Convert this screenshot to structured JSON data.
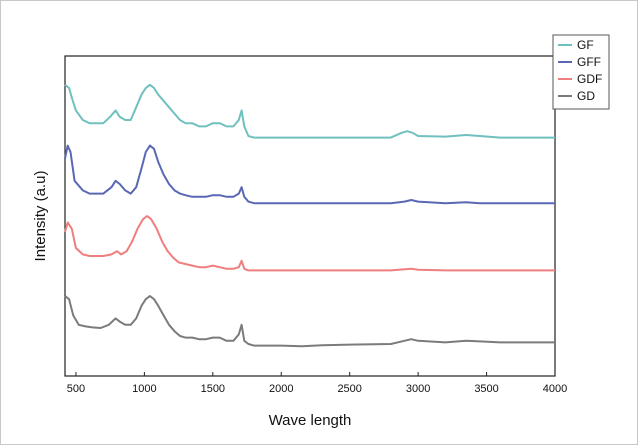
{
  "chart_data": {
    "type": "line",
    "title": "",
    "xlabel": "Wave length",
    "ylabel": "Intensity (a.u)",
    "xlim": [
      420,
      4000
    ],
    "ylim": [
      0,
      100
    ],
    "xticks": [
      "500",
      "1000",
      "1500",
      "2000",
      "2500",
      "3000",
      "3500",
      "4000"
    ],
    "y_tick_labels_shown": false,
    "grid": false,
    "legend_position": "top-right",
    "note": "",
    "series": [
      {
        "name": "GF",
        "color": "#6fc0be",
        "points": [
          [
            420,
            91
          ],
          [
            450,
            90
          ],
          [
            470,
            87
          ],
          [
            500,
            83
          ],
          [
            550,
            80
          ],
          [
            600,
            79
          ],
          [
            650,
            79
          ],
          [
            700,
            79
          ],
          [
            750,
            81
          ],
          [
            790,
            83
          ],
          [
            820,
            81
          ],
          [
            860,
            80
          ],
          [
            900,
            80
          ],
          [
            940,
            84
          ],
          [
            980,
            88
          ],
          [
            1010,
            90
          ],
          [
            1040,
            91
          ],
          [
            1070,
            90
          ],
          [
            1100,
            88
          ],
          [
            1140,
            86
          ],
          [
            1180,
            84
          ],
          [
            1220,
            82
          ],
          [
            1260,
            80
          ],
          [
            1300,
            79
          ],
          [
            1350,
            79
          ],
          [
            1400,
            78
          ],
          [
            1450,
            78
          ],
          [
            1500,
            79
          ],
          [
            1550,
            79
          ],
          [
            1600,
            78
          ],
          [
            1650,
            78
          ],
          [
            1690,
            80
          ],
          [
            1710,
            83
          ],
          [
            1730,
            78
          ],
          [
            1760,
            75
          ],
          [
            1800,
            74.5
          ],
          [
            2000,
            74.5
          ],
          [
            2500,
            74.5
          ],
          [
            2800,
            74.5
          ],
          [
            2880,
            76
          ],
          [
            2920,
            76.5
          ],
          [
            2960,
            76
          ],
          [
            3000,
            75
          ],
          [
            3200,
            74.8
          ],
          [
            3350,
            75.3
          ],
          [
            3450,
            75
          ],
          [
            3600,
            74.5
          ],
          [
            4000,
            74.5
          ]
        ]
      },
      {
        "name": "GFF",
        "color": "#5a67b5",
        "points": [
          [
            420,
            68
          ],
          [
            440,
            72
          ],
          [
            460,
            70
          ],
          [
            490,
            61
          ],
          [
            550,
            58
          ],
          [
            600,
            57
          ],
          [
            650,
            57
          ],
          [
            700,
            57
          ],
          [
            760,
            59
          ],
          [
            790,
            61
          ],
          [
            820,
            60
          ],
          [
            860,
            58
          ],
          [
            900,
            57
          ],
          [
            940,
            59
          ],
          [
            980,
            65
          ],
          [
            1010,
            70
          ],
          [
            1040,
            72
          ],
          [
            1070,
            71
          ],
          [
            1100,
            67
          ],
          [
            1140,
            63
          ],
          [
            1180,
            60
          ],
          [
            1220,
            58
          ],
          [
            1260,
            57
          ],
          [
            1300,
            56.5
          ],
          [
            1350,
            56
          ],
          [
            1400,
            56
          ],
          [
            1450,
            56
          ],
          [
            1500,
            56.5
          ],
          [
            1550,
            56.5
          ],
          [
            1600,
            56
          ],
          [
            1650,
            56
          ],
          [
            1690,
            57
          ],
          [
            1710,
            59
          ],
          [
            1730,
            56
          ],
          [
            1760,
            54.5
          ],
          [
            1800,
            54
          ],
          [
            2000,
            54
          ],
          [
            2500,
            54
          ],
          [
            2800,
            54
          ],
          [
            2900,
            54.5
          ],
          [
            2950,
            55
          ],
          [
            3000,
            54.5
          ],
          [
            3200,
            54
          ],
          [
            3350,
            54.3
          ],
          [
            3450,
            54
          ],
          [
            4000,
            54
          ]
        ]
      },
      {
        "name": "GDF",
        "color": "#ef7f7f",
        "points": [
          [
            420,
            45
          ],
          [
            440,
            48
          ],
          [
            470,
            46
          ],
          [
            500,
            40
          ],
          [
            550,
            38
          ],
          [
            600,
            37.5
          ],
          [
            650,
            37.5
          ],
          [
            700,
            37.5
          ],
          [
            760,
            38
          ],
          [
            800,
            39
          ],
          [
            830,
            38
          ],
          [
            870,
            39
          ],
          [
            910,
            42
          ],
          [
            950,
            46
          ],
          [
            990,
            49
          ],
          [
            1020,
            50
          ],
          [
            1050,
            49
          ],
          [
            1090,
            46
          ],
          [
            1130,
            42
          ],
          [
            1170,
            39
          ],
          [
            1210,
            37
          ],
          [
            1250,
            35.5
          ],
          [
            1300,
            35
          ],
          [
            1350,
            34.5
          ],
          [
            1400,
            34
          ],
          [
            1450,
            34
          ],
          [
            1500,
            34.5
          ],
          [
            1550,
            34
          ],
          [
            1600,
            33.5
          ],
          [
            1650,
            33.5
          ],
          [
            1690,
            34
          ],
          [
            1710,
            36
          ],
          [
            1730,
            33.5
          ],
          [
            1760,
            33
          ],
          [
            1800,
            33
          ],
          [
            2000,
            33
          ],
          [
            2500,
            33
          ],
          [
            2800,
            33
          ],
          [
            2950,
            33.5
          ],
          [
            3000,
            33.2
          ],
          [
            3200,
            33
          ],
          [
            4000,
            33
          ]
        ]
      },
      {
        "name": "GD",
        "color": "#7b7b7b",
        "points": [
          [
            420,
            25
          ],
          [
            450,
            24
          ],
          [
            480,
            19
          ],
          [
            520,
            16
          ],
          [
            570,
            15.5
          ],
          [
            620,
            15.2
          ],
          [
            680,
            15
          ],
          [
            740,
            16
          ],
          [
            790,
            18
          ],
          [
            820,
            17
          ],
          [
            860,
            16
          ],
          [
            900,
            16
          ],
          [
            940,
            18
          ],
          [
            980,
            22
          ],
          [
            1010,
            24
          ],
          [
            1040,
            25
          ],
          [
            1070,
            24
          ],
          [
            1100,
            22
          ],
          [
            1140,
            19
          ],
          [
            1180,
            16
          ],
          [
            1220,
            14
          ],
          [
            1260,
            12.5
          ],
          [
            1300,
            12
          ],
          [
            1350,
            12
          ],
          [
            1400,
            11.5
          ],
          [
            1450,
            11.5
          ],
          [
            1500,
            12
          ],
          [
            1550,
            12
          ],
          [
            1600,
            11
          ],
          [
            1650,
            11
          ],
          [
            1690,
            13
          ],
          [
            1710,
            16
          ],
          [
            1730,
            11
          ],
          [
            1760,
            10
          ],
          [
            1800,
            9.5
          ],
          [
            2000,
            9.5
          ],
          [
            2150,
            9.3
          ],
          [
            2300,
            9.6
          ],
          [
            2500,
            9.8
          ],
          [
            2800,
            10
          ],
          [
            2900,
            11
          ],
          [
            2950,
            11.5
          ],
          [
            3000,
            11
          ],
          [
            3200,
            10.5
          ],
          [
            3350,
            11
          ],
          [
            3450,
            10.8
          ],
          [
            3600,
            10.5
          ],
          [
            4000,
            10.5
          ]
        ]
      }
    ]
  }
}
